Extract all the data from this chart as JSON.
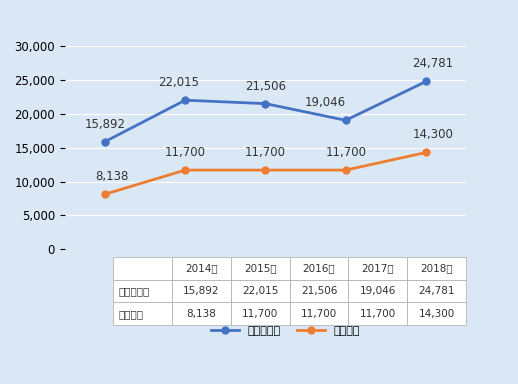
{
  "years": [
    "2014年",
    "2015年",
    "2016年",
    "2017年",
    "2018年"
  ],
  "jissitsu": [
    15892,
    22015,
    21506,
    19046,
    24781
  ],
  "saiteichin": [
    8138,
    11700,
    11700,
    11700,
    14300
  ],
  "jissitsu_color": "#4472C4",
  "saiteichin_color": "#ED7D31",
  "jissitsu_label": "実質負担額",
  "saiteichin_label": "最低賃金",
  "ylim": [
    0,
    30000
  ],
  "yticks": [
    0,
    5000,
    10000,
    15000,
    20000,
    25000,
    30000
  ],
  "bg_color": "#DAE8F5",
  "table_header_color": "#ffffff",
  "table_row1": "実質負担額",
  "table_row2": "最低賃金",
  "annotation_fontsize": 8.5,
  "label_fontsize": 9,
  "tick_fontsize": 8.5
}
